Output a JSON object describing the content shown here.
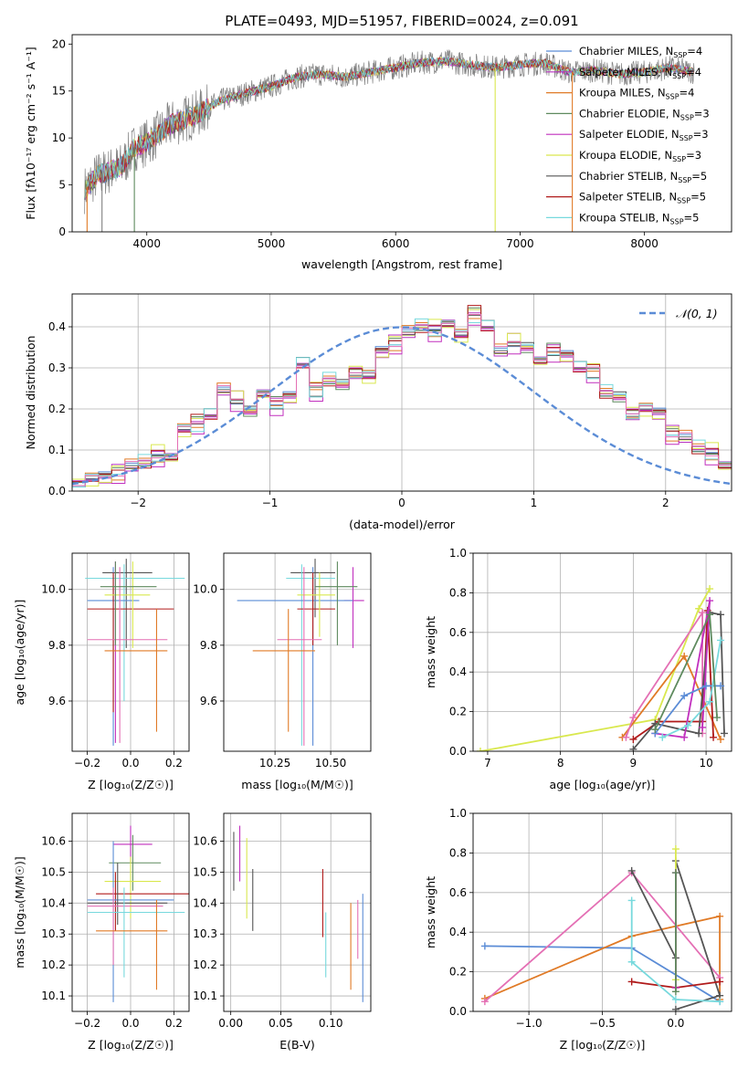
{
  "title": "PLATE=0493, MJD=51957, FIBERID=0024, z=0.091",
  "colors": {
    "chabrier_miles": "#5b8cd6",
    "salpeter_miles": "#b733c0",
    "kroupa_miles": "#e07a26",
    "chabrier_elodie": "#5e8a5e",
    "salpeter_elodie": "#c12fbe",
    "kroupa_elodie": "#d9e84e",
    "chabrier_stelib": "#555555",
    "salpeter_stelib": "#b01a1a",
    "kroupa_stelib": "#77d9dd",
    "data": "#808080",
    "normal": "#5b8cd6",
    "pink": "#e46fb4"
  },
  "chart_data": [
    {
      "type": "line",
      "title": "PLATE=0493, MJD=51957, FIBERID=0024, z=0.091",
      "xlabel": "wavelength [Angstrom, rest frame]",
      "ylabel": "Flux [fλ10⁻¹⁷ erg cm⁻² s⁻¹ A⁻¹]",
      "xlim": [
        3400,
        8700
      ],
      "ylim": [
        0,
        21
      ],
      "xticks": [
        4000,
        5000,
        6000,
        7000,
        8000
      ],
      "yticks": [
        0,
        5,
        10,
        15,
        20
      ],
      "grid": false,
      "legend_position": "right",
      "legend": [
        {
          "label": "Chabrier MILES, N",
          "sub": "SSP",
          "tail": "=4",
          "color_key": "chabrier_miles"
        },
        {
          "label": "Salpeter MILES, N",
          "sub": "SSP",
          "tail": "=4",
          "color_key": "salpeter_miles"
        },
        {
          "label": "Kroupa MILES, N",
          "sub": "SSP",
          "tail": "=4",
          "color_key": "kroupa_miles"
        },
        {
          "label": "Chabrier ELODIE, N",
          "sub": "SSP",
          "tail": "=3",
          "color_key": "chabrier_elodie"
        },
        {
          "label": "Salpeter ELODIE, N",
          "sub": "SSP",
          "tail": "=3",
          "color_key": "salpeter_elodie"
        },
        {
          "label": "Kroupa ELODIE, N",
          "sub": "SSP",
          "tail": "=3",
          "color_key": "kroupa_elodie"
        },
        {
          "label": "Chabrier STELIB, N",
          "sub": "SSP",
          "tail": "=5",
          "color_key": "chabrier_stelib"
        },
        {
          "label": "Salpeter STELIB, N",
          "sub": "SSP",
          "tail": "=5",
          "color_key": "salpeter_stelib"
        },
        {
          "label": "Kroupa STELIB, N",
          "sub": "SSP",
          "tail": "=5",
          "color_key": "kroupa_stelib"
        }
      ],
      "continuum": [
        [
          3500,
          4.5
        ],
        [
          3600,
          6
        ],
        [
          3700,
          6.5
        ],
        [
          3800,
          7
        ],
        [
          3900,
          9
        ],
        [
          4000,
          9.5
        ],
        [
          4200,
          11.5
        ],
        [
          4400,
          12.5
        ],
        [
          4600,
          14
        ],
        [
          4800,
          14.8
        ],
        [
          5000,
          15.5
        ],
        [
          5200,
          16.5
        ],
        [
          5400,
          16.8
        ],
        [
          5600,
          16.5
        ],
        [
          5800,
          17
        ],
        [
          6000,
          17.5
        ],
        [
          6200,
          18
        ],
        [
          6400,
          18.2
        ],
        [
          6600,
          17.8
        ],
        [
          6800,
          17.5
        ],
        [
          7000,
          17.8
        ],
        [
          7200,
          18
        ],
        [
          7400,
          17
        ],
        [
          7600,
          17.2
        ],
        [
          7800,
          16.8
        ],
        [
          8000,
          17
        ],
        [
          8200,
          17.5
        ],
        [
          8400,
          17
        ]
      ],
      "spikes": [
        {
          "x": 6800,
          "series": "kroupa_elodie"
        },
        {
          "x": 7420,
          "series": "kroupa_miles"
        },
        {
          "x": 3520,
          "series": "kroupa_miles"
        },
        {
          "x": 3640,
          "series": "data"
        },
        {
          "x": 3900,
          "series": "chabrier_elodie"
        }
      ]
    },
    {
      "type": "line",
      "xlabel": "(data-model)/error",
      "ylabel": "Normed distribution",
      "xlim": [
        -2.5,
        2.5
      ],
      "ylim": [
        0,
        0.48
      ],
      "xticks": [
        -2,
        -1,
        0,
        1,
        2
      ],
      "yticks": [
        0.0,
        0.1,
        0.2,
        0.3,
        0.4
      ],
      "grid": true,
      "legend_position": "top-right",
      "legend": [
        {
          "label": "𝒩(0, 1)",
          "color_key": "normal"
        }
      ]
    },
    {
      "type": "scatter",
      "xlabel": "Z [log₁₀(Z/Z☉)]",
      "ylabel": "age  [log₁₀(age/yr)]",
      "xlim": [
        -0.27,
        0.27
      ],
      "ylim": [
        9.42,
        10.13
      ],
      "xticks": [
        -0.2,
        0.0,
        0.2
      ],
      "yticks": [
        9.6,
        9.8,
        10.0
      ],
      "grid": true
    },
    {
      "type": "scatter",
      "xlabel": "mass [log₁₀(M/M☉)]",
      "ylabel": "",
      "xlim": [
        10.02,
        10.68
      ],
      "ylim": [
        9.42,
        10.13
      ],
      "xticks": [
        10.25,
        10.5
      ],
      "yticks": [
        9.6,
        9.8,
        10.0
      ],
      "grid": true
    },
    {
      "type": "line",
      "xlabel": "age  [log₁₀(age/yr)]",
      "ylabel": "mass weight",
      "xlim": [
        6.8,
        10.35
      ],
      "ylim": [
        0.0,
        1.0
      ],
      "xticks": [
        7,
        8,
        9,
        10
      ],
      "yticks": [
        0.0,
        0.2,
        0.4,
        0.6,
        0.8,
        1.0
      ],
      "grid": true
    },
    {
      "type": "scatter",
      "xlabel": "Z [log₁₀(Z/Z☉)]",
      "ylabel": "mass [log₁₀(M/M☉)]",
      "xlim": [
        -0.27,
        0.27
      ],
      "ylim": [
        10.05,
        10.69
      ],
      "xticks": [
        -0.2,
        0.0,
        0.2
      ],
      "yticks": [
        10.1,
        10.2,
        10.3,
        10.4,
        10.5,
        10.6
      ],
      "grid": true
    },
    {
      "type": "scatter",
      "xlabel": "E(B-V)",
      "ylabel": "",
      "xlim": [
        -0.007,
        0.14
      ],
      "ylim": [
        10.05,
        10.69
      ],
      "xticks": [
        0.0,
        0.05,
        0.1
      ],
      "yticks": [
        10.1,
        10.2,
        10.3,
        10.4,
        10.5,
        10.6
      ],
      "grid": true
    },
    {
      "type": "line",
      "xlabel": "Z [log₁₀(Z/Z☉)]",
      "ylabel": "mass weight",
      "xlim": [
        -1.38,
        0.38
      ],
      "ylim": [
        0.0,
        1.0
      ],
      "xticks": [
        -1.0,
        -0.5,
        0.0
      ],
      "yticks": [
        0.0,
        0.2,
        0.4,
        0.6,
        0.8,
        1.0
      ],
      "grid": true
    }
  ],
  "residual_hist": {
    "edges_start": -2.5,
    "bin_width": 0.1,
    "base": [
      0.025,
      0.03,
      0.035,
      0.045,
      0.06,
      0.07,
      0.085,
      0.095,
      0.15,
      0.165,
      0.185,
      0.245,
      0.22,
      0.195,
      0.25,
      0.21,
      0.23,
      0.31,
      0.245,
      0.27,
      0.26,
      0.3,
      0.28,
      0.34,
      0.36,
      0.385,
      0.4,
      0.39,
      0.42,
      0.38,
      0.43,
      0.4,
      0.34,
      0.36,
      0.35,
      0.33,
      0.34,
      0.33,
      0.3,
      0.29,
      0.24,
      0.23,
      0.2,
      0.2,
      0.19,
      0.14,
      0.13,
      0.105,
      0.09,
      0.075,
      0.095,
      0.08,
      0.085,
      0.06,
      0.055,
      0.05,
      0.04,
      0.035,
      0.03,
      0.025
    ],
    "offsets": [
      0.0,
      0.012,
      -0.01,
      0.008,
      -0.014,
      0.016,
      -0.006,
      0.01,
      -0.012
    ]
  },
  "panel_ageZ": [
    {
      "c": "salpeter_elodie",
      "x": -0.07,
      "xe": [
        -0.07,
        -0.07
      ],
      "y": 10.0,
      "ye": [
        9.45,
        10.1
      ]
    },
    {
      "c": "chabrier_stelib",
      "x": -0.02,
      "xe": [
        -0.13,
        0.1
      ],
      "y": 10.06,
      "ye": [
        9.79,
        10.11
      ]
    },
    {
      "c": "kroupa_stelib",
      "x": -0.03,
      "xe": [
        -0.21,
        0.25
      ],
      "y": 10.04,
      "ye": [
        9.6,
        10.09
      ]
    },
    {
      "c": "chabrier_miles",
      "x": -0.08,
      "xe": [
        -0.2,
        0.04
      ],
      "y": 9.96,
      "ye": [
        9.44,
        10.08
      ]
    },
    {
      "c": "salpeter_stelib",
      "x": -0.08,
      "xe": [
        -0.2,
        0.2
      ],
      "y": 9.93,
      "ye": [
        9.56,
        10.06
      ]
    },
    {
      "c": "kroupa_elodie",
      "x": 0.01,
      "xe": [
        -0.12,
        0.09
      ],
      "y": 9.98,
      "ye": [
        9.79,
        10.1
      ]
    },
    {
      "c": "pink",
      "x": -0.05,
      "xe": [
        -0.2,
        0.17
      ],
      "y": 9.82,
      "ye": [
        9.45,
        10.08
      ]
    },
    {
      "c": "kroupa_miles",
      "x": 0.12,
      "xe": [
        -0.12,
        0.17
      ],
      "y": 9.78,
      "ye": [
        9.49,
        9.93
      ]
    },
    {
      "c": "chabrier_elodie",
      "x": -0.07,
      "xe": [
        -0.14,
        0.12
      ],
      "y": 10.01,
      "ye": [
        9.8,
        10.1
      ]
    }
  ],
  "panel_ageM": [
    {
      "c": "salpeter_elodie",
      "x": 10.6,
      "xe": [
        10.56,
        10.65
      ],
      "y": 9.96,
      "ye": [
        9.79,
        10.08
      ]
    },
    {
      "c": "chabrier_stelib",
      "x": 10.43,
      "xe": [
        10.32,
        10.52
      ],
      "y": 10.06,
      "ye": [
        9.9,
        10.11
      ]
    },
    {
      "c": "kroupa_stelib",
      "x": 10.37,
      "xe": [
        10.3,
        10.52
      ],
      "y": 10.04,
      "ye": [
        9.44,
        10.09
      ]
    },
    {
      "c": "chabrier_miles",
      "x": 10.42,
      "xe": [
        10.08,
        10.6
      ],
      "y": 9.96,
      "ye": [
        9.44,
        10.08
      ]
    },
    {
      "c": "salpeter_stelib",
      "x": 10.42,
      "xe": [
        10.35,
        10.52
      ],
      "y": 9.93,
      "ye": [
        9.8,
        10.06
      ]
    },
    {
      "c": "kroupa_elodie",
      "x": 10.45,
      "xe": [
        10.35,
        10.52
      ],
      "y": 9.98,
      "ye": [
        9.83,
        10.06
      ]
    },
    {
      "c": "pink",
      "x": 10.38,
      "xe": [
        10.26,
        10.46
      ],
      "y": 9.82,
      "ye": [
        9.44,
        10.08
      ]
    },
    {
      "c": "kroupa_miles",
      "x": 10.31,
      "xe": [
        10.15,
        10.43
      ],
      "y": 9.78,
      "ye": [
        9.49,
        9.93
      ]
    },
    {
      "c": "chabrier_elodie",
      "x": 10.53,
      "xe": [
        10.43,
        10.62
      ],
      "y": 10.01,
      "ye": [
        9.8,
        10.1
      ]
    }
  ],
  "panel_MZ": [
    {
      "c": "salpeter_elodie",
      "x": 0.0,
      "xe": [
        -0.08,
        0.1
      ],
      "y": 10.59,
      "ye": [
        10.53,
        10.65
      ]
    },
    {
      "c": "chabrier_elodie",
      "x": 0.01,
      "xe": [
        -0.1,
        0.14
      ],
      "y": 10.53,
      "ye": [
        10.44,
        10.62
      ]
    },
    {
      "c": "kroupa_elodie",
      "x": 0.0,
      "xe": [
        -0.12,
        0.14
      ],
      "y": 10.47,
      "ye": [
        10.35,
        10.55
      ]
    },
    {
      "c": "salpeter_stelib",
      "x": -0.07,
      "xe": [
        -0.16,
        0.27
      ],
      "y": 10.43,
      "ye": [
        10.31,
        10.5
      ]
    },
    {
      "c": "chabrier_miles",
      "x": -0.08,
      "xe": [
        -0.2,
        0.2
      ],
      "y": 10.41,
      "ye": [
        10.08,
        10.6
      ]
    },
    {
      "c": "chabrier_stelib",
      "x": -0.06,
      "xe": [
        -0.2,
        0.17
      ],
      "y": 10.4,
      "ye": [
        10.33,
        10.53
      ]
    },
    {
      "c": "pink",
      "x": -0.08,
      "xe": [
        -0.2,
        0.15
      ],
      "y": 10.39,
      "ye": [
        10.2,
        10.45
      ]
    },
    {
      "c": "kroupa_stelib",
      "x": -0.03,
      "xe": [
        -0.2,
        0.25
      ],
      "y": 10.37,
      "ye": [
        10.16,
        10.45
      ]
    },
    {
      "c": "kroupa_miles",
      "x": 0.12,
      "xe": [
        -0.16,
        0.17
      ],
      "y": 10.31,
      "ye": [
        10.12,
        10.41
      ]
    }
  ],
  "panel_ME": [
    {
      "c": "chabrier_stelib",
      "x": 0.003,
      "y1": 10.44,
      "y2": 10.63
    },
    {
      "c": "salpeter_elodie",
      "x": 0.009,
      "y1": 10.47,
      "y2": 10.65
    },
    {
      "c": "kroupa_elodie",
      "x": 0.016,
      "y1": 10.35,
      "y2": 10.61
    },
    {
      "c": "chabrier_stelib",
      "x": 0.022,
      "y1": 10.31,
      "y2": 10.51
    },
    {
      "c": "salpeter_stelib",
      "x": 0.092,
      "y1": 10.29,
      "y2": 10.51
    },
    {
      "c": "kroupa_stelib",
      "x": 0.095,
      "y1": 10.16,
      "y2": 10.37
    },
    {
      "c": "kroupa_miles",
      "x": 0.12,
      "y1": 10.12,
      "y2": 10.4
    },
    {
      "c": "pink",
      "x": 0.127,
      "y1": 10.22,
      "y2": 10.41
    },
    {
      "c": "chabrier_miles",
      "x": 0.132,
      "y1": 10.08,
      "y2": 10.43
    }
  ],
  "panel_wAge": [
    {
      "c": "kroupa_elodie",
      "pts": [
        [
          6.9,
          0.0
        ],
        [
          9.3,
          0.16
        ],
        [
          9.9,
          0.72
        ],
        [
          10.05,
          0.82
        ]
      ]
    },
    {
      "c": "kroupa_miles",
      "pts": [
        [
          8.85,
          0.07
        ],
        [
          9.7,
          0.48
        ],
        [
          10.2,
          0.06
        ]
      ]
    },
    {
      "c": "pink",
      "pts": [
        [
          8.9,
          0.07
        ],
        [
          9.0,
          0.17
        ],
        [
          9.95,
          0.7
        ],
        [
          9.95,
          0.09
        ]
      ]
    },
    {
      "c": "salpeter_stelib",
      "pts": [
        [
          9.0,
          0.06
        ],
        [
          9.35,
          0.15
        ],
        [
          9.95,
          0.15
        ],
        [
          10.02,
          0.71
        ],
        [
          10.1,
          0.07
        ]
      ]
    },
    {
      "c": "chabrier_stelib",
      "pts": [
        [
          9.0,
          0.01
        ],
        [
          9.3,
          0.14
        ],
        [
          9.9,
          0.09
        ],
        [
          10.05,
          0.7
        ],
        [
          10.2,
          0.69
        ],
        [
          10.25,
          0.09
        ]
      ]
    },
    {
      "c": "salpeter_elodie",
      "pts": [
        [
          9.3,
          0.09
        ],
        [
          9.7,
          0.07
        ],
        [
          10.05,
          0.76
        ],
        [
          9.95,
          0.12
        ]
      ]
    },
    {
      "c": "chabrier_miles",
      "pts": [
        [
          9.3,
          0.09
        ],
        [
          9.7,
          0.28
        ],
        [
          10.0,
          0.33
        ],
        [
          10.2,
          0.33
        ]
      ]
    },
    {
      "c": "kroupa_stelib",
      "pts": [
        [
          9.4,
          0.07
        ],
        [
          9.75,
          0.13
        ],
        [
          10.05,
          0.25
        ],
        [
          10.2,
          0.56
        ]
      ]
    },
    {
      "c": "chabrier_elodie",
      "pts": [
        [
          9.3,
          0.11
        ],
        [
          10.05,
          0.69
        ],
        [
          10.15,
          0.17
        ]
      ]
    }
  ],
  "panel_wZ": [
    {
      "c": "chabrier_miles",
      "pts": [
        [
          -1.3,
          0.33
        ],
        [
          -0.3,
          0.32
        ],
        [
          0.3,
          0.05
        ]
      ]
    },
    {
      "c": "kroupa_miles",
      "pts": [
        [
          -1.3,
          0.065
        ],
        [
          -0.3,
          0.38
        ],
        [
          0.3,
          0.48
        ],
        [
          0.3,
          0.06
        ]
      ]
    },
    {
      "c": "pink",
      "pts": [
        [
          -1.3,
          0.05
        ],
        [
          -0.3,
          0.7
        ],
        [
          0.3,
          0.17
        ]
      ]
    },
    {
      "c": "chabrier_stelib",
      "pts": [
        [
          -0.3,
          0.71
        ],
        [
          0.0,
          0.27
        ],
        [
          0.0,
          0.76
        ],
        [
          0.3,
          0.08
        ],
        [
          0.0,
          0.01
        ]
      ]
    },
    {
      "c": "salpeter_stelib",
      "pts": [
        [
          -0.3,
          0.15
        ],
        [
          0.0,
          0.12
        ],
        [
          0.3,
          0.15
        ]
      ]
    },
    {
      "c": "kroupa_stelib",
      "pts": [
        [
          -0.3,
          0.56
        ],
        [
          -0.3,
          0.25
        ],
        [
          0.0,
          0.06
        ],
        [
          0.3,
          0.05
        ]
      ]
    },
    {
      "c": "kroupa_elodie",
      "pts": [
        [
          0.0,
          0.82
        ],
        [
          0.0,
          0.16
        ]
      ]
    },
    {
      "c": "salpeter_elodie",
      "pts": [
        [
          0.0,
          0.7
        ],
        [
          0.0,
          0.12
        ]
      ]
    },
    {
      "c": "chabrier_elodie",
      "pts": [
        [
          0.0,
          0.7
        ],
        [
          0.0,
          0.1
        ]
      ]
    }
  ]
}
